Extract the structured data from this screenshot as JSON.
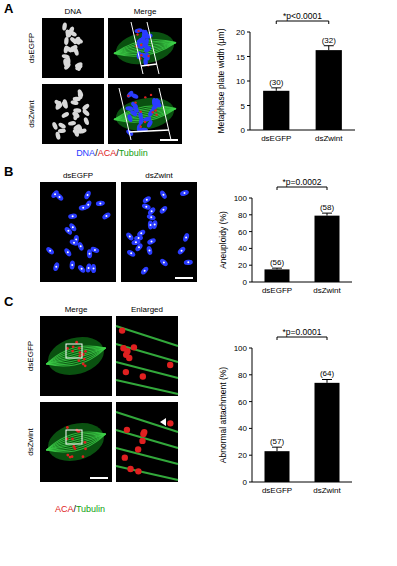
{
  "panels": [
    {
      "label": "A",
      "column_headers": [
        "DNA",
        "Merge"
      ],
      "row_labels": [
        "dsEGFP",
        "dsZwint"
      ],
      "caption": [
        {
          "text": "DNA",
          "color": "#2a3cff"
        },
        {
          "text": "/",
          "color": "#000000"
        },
        {
          "text": "ACA",
          "color": "#e02020"
        },
        {
          "text": "/",
          "color": "#000000"
        },
        {
          "text": "Tubulin",
          "color": "#10a010"
        }
      ]
    },
    {
      "label": "B",
      "column_headers": [
        "dsEGFP",
        "dsZwint"
      ]
    },
    {
      "label": "C",
      "column_headers": [
        "Merge",
        "Enlarged"
      ],
      "row_labels": [
        "dsEGFP",
        "dsZwint"
      ],
      "caption": [
        {
          "text": "ACA",
          "color": "#e02020"
        },
        {
          "text": "/",
          "color": "#000000"
        },
        {
          "text": "Tubulin",
          "color": "#10a010"
        }
      ]
    }
  ],
  "chart_data": [
    {
      "type": "bar",
      "y_label": "Metaphase plate width (μm)",
      "categories": [
        "dsEGFP",
        "dsZwint"
      ],
      "values": [
        8,
        16.3
      ],
      "errors": [
        0.6,
        0.9
      ],
      "n_labels": [
        "(30)",
        "(32)"
      ],
      "significance": "*p<0.0001",
      "color": "#000000",
      "ylim": [
        0,
        20
      ],
      "yticks": [
        0,
        5,
        10,
        15,
        20
      ]
    },
    {
      "type": "bar",
      "y_label": "Aneuploidy (%)",
      "categories": [
        "dsEGFP",
        "dsZwint"
      ],
      "values": [
        15,
        79
      ],
      "errors": [
        1.5,
        3
      ],
      "n_labels": [
        "(56)",
        "(58)"
      ],
      "significance": "*p=0.0002",
      "color": "#000000",
      "ylim": [
        0,
        100
      ],
      "yticks": [
        0,
        20,
        40,
        60,
        80,
        100
      ]
    },
    {
      "type": "bar",
      "y_label": "Abnormal attachment (%)",
      "categories": [
        "dsEGFP",
        "dsZwint"
      ],
      "values": [
        23,
        74
      ],
      "errors": [
        3,
        2.5
      ],
      "n_labels": [
        "(57)",
        "(64)"
      ],
      "significance": "*p=0.0001",
      "color": "#000000",
      "ylim": [
        0,
        100
      ],
      "yticks": [
        0,
        20,
        40,
        60,
        80,
        100
      ]
    }
  ]
}
